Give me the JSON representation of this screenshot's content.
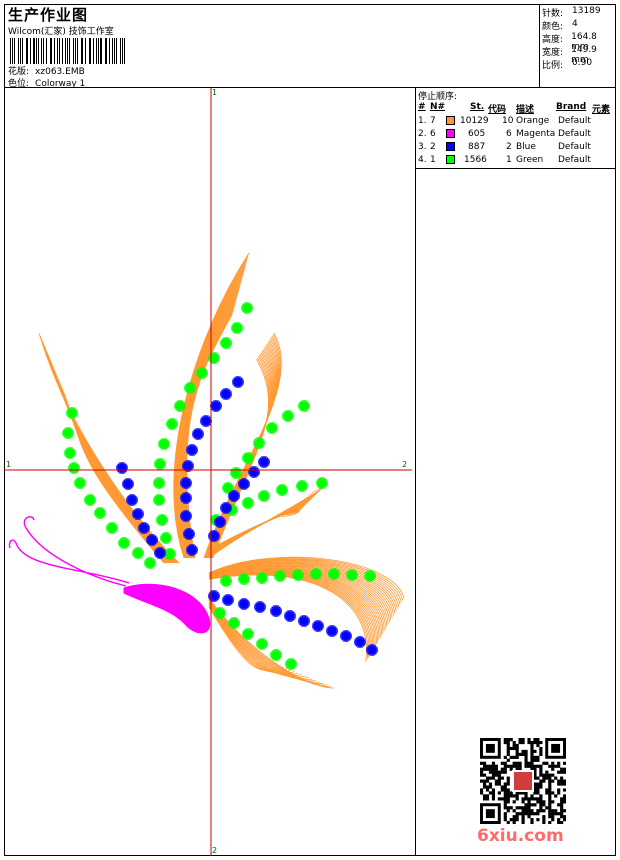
{
  "header": {
    "title": "生产作业图",
    "company": "Wilcom(汇家) 技饰工作室",
    "design_label": "花版:",
    "design_value": "xz063.EMB",
    "colorway_label": "色位:",
    "colorway_value": "Colorway 1"
  },
  "stats": [
    {
      "label": "针数:",
      "value": "13189"
    },
    {
      "label": "颜色:",
      "value": "4"
    },
    {
      "label": "高度:",
      "value": "164.8 mm"
    },
    {
      "label": "宽度:",
      "value": "149.9 mm"
    },
    {
      "label": "比例:",
      "value": "0.90"
    }
  ],
  "stop_sequence": {
    "title": "停止顺序:",
    "headers": [
      "#",
      "N#",
      "St.",
      "代码",
      "描述",
      "Brand",
      "元素"
    ],
    "rows": [
      {
        "idx": "1.",
        "n": "7",
        "color": "#ff9933",
        "stitches": "10129",
        "code": "10",
        "desc": "Orange",
        "brand": "Default"
      },
      {
        "idx": "2.",
        "n": "6",
        "color": "#ff00ff",
        "stitches": "605",
        "code": "6",
        "desc": "Magenta",
        "brand": "Default"
      },
      {
        "idx": "3.",
        "n": "2",
        "color": "#0000ff",
        "stitches": "887",
        "code": "2",
        "desc": "Blue",
        "brand": "Default"
      },
      {
        "idx": "4.",
        "n": "1",
        "color": "#00ff00",
        "stitches": "1566",
        "code": "1",
        "desc": "Green",
        "brand": "Default"
      }
    ]
  },
  "axes": {
    "left": "1",
    "right": "2",
    "top": "1",
    "bottom": "2"
  },
  "colors": {
    "orange": "#ff9933",
    "magenta": "#ff00ff",
    "blue": "#0000ff",
    "green": "#00ff00",
    "crosshair": "#cc0000"
  },
  "watermark": "6xiu.com"
}
